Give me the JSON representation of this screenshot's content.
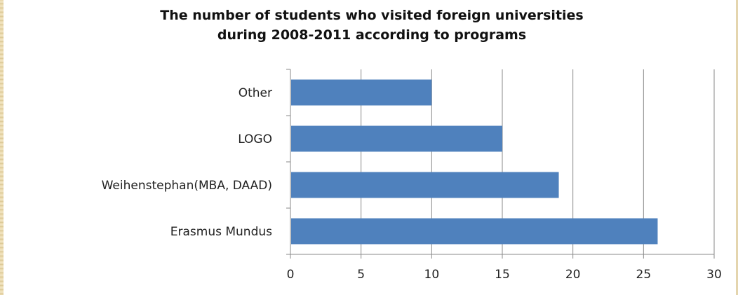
{
  "chart_data": {
    "type": "bar",
    "orientation": "horizontal",
    "title": "The number of students who visited foreign universities during  2008-2011 according to programs",
    "title_lines": [
      "The number of students who visited foreign universities",
      "during  2008-2011 according to programs"
    ],
    "categories": [
      "Other",
      "LOGO",
      "Weihenstephan(MBA, DAAD)",
      "Erasmus Mundus"
    ],
    "values": [
      10,
      15,
      19,
      26
    ],
    "xlim": [
      0,
      30
    ],
    "x_ticks": [
      "0",
      "5",
      "10",
      "15",
      "20",
      "25",
      "30"
    ],
    "grid": "vertical",
    "legend": "none",
    "bar_color": "#4f81bd",
    "xlabel": "",
    "ylabel": ""
  }
}
